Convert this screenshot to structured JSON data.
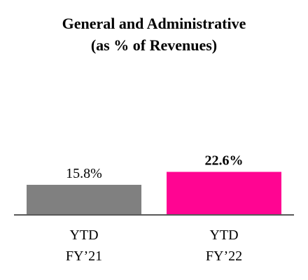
{
  "chart_data": {
    "type": "bar",
    "title": "General and Administrative",
    "subtitle": "(as % of Revenues)",
    "categories": [
      {
        "line1": "YTD",
        "line2": "FY’21"
      },
      {
        "line1": "YTD",
        "line2": "FY’22"
      }
    ],
    "values": [
      15.8,
      22.6
    ],
    "value_labels": [
      "15.8%",
      "22.6%"
    ],
    "value_label_bold": [
      false,
      true
    ],
    "colors": [
      "#808080",
      "#ff0592"
    ],
    "axis_color": "#595959",
    "ylim": [
      0,
      100
    ],
    "grid": false
  }
}
